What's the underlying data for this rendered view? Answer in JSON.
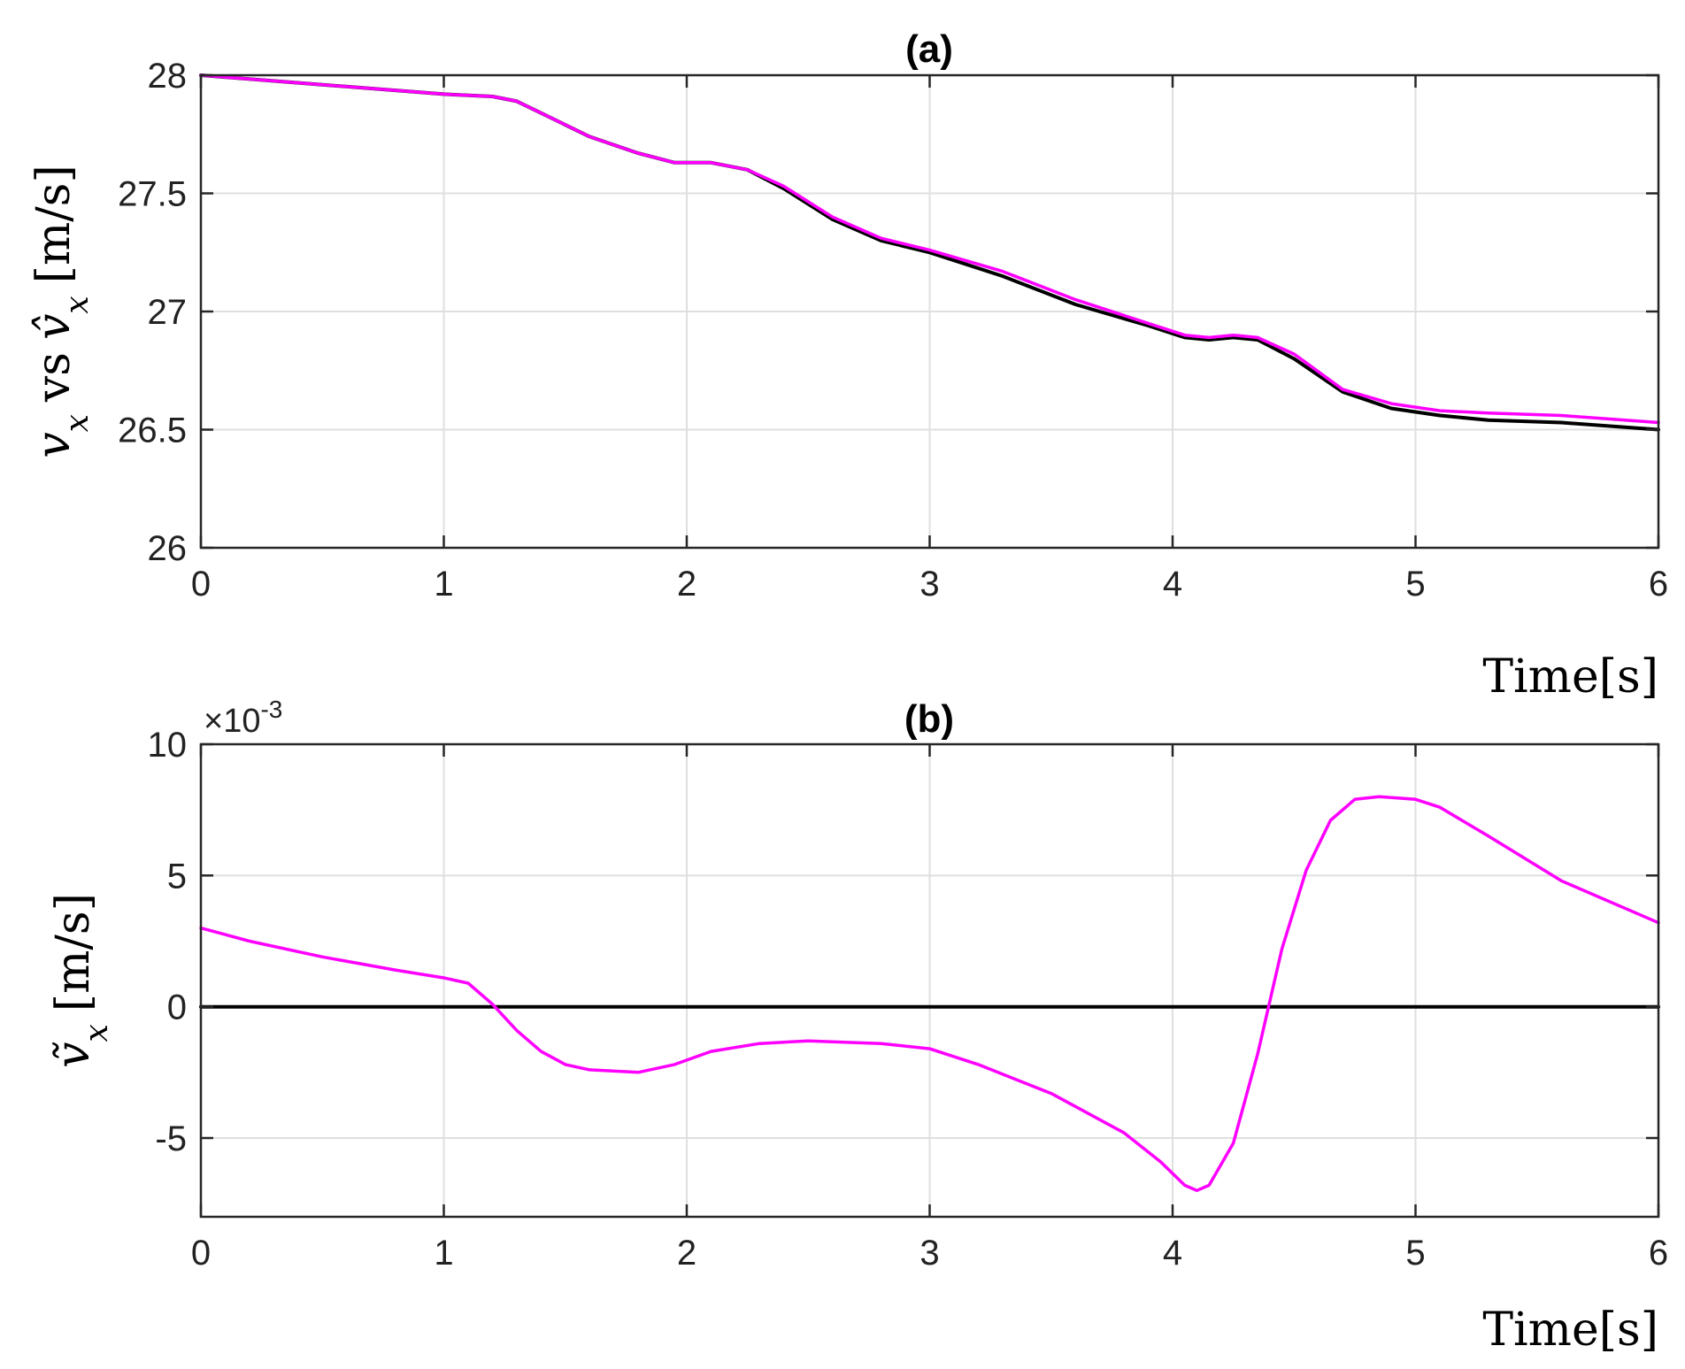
{
  "chart_data": [
    {
      "type": "line",
      "title": "(a)",
      "xlabel": "Time[s]",
      "ylabel_parts": [
        "v",
        "x",
        "vs",
        "v̂",
        "x",
        "[m/s]"
      ],
      "xlim": [
        0,
        6
      ],
      "ylim": [
        26,
        28
      ],
      "xticks": [
        0,
        1,
        2,
        3,
        4,
        5,
        6
      ],
      "yticks": [
        26,
        26.5,
        27,
        27.5,
        28
      ],
      "xtick_labels": [
        "0",
        "1",
        "2",
        "3",
        "4",
        "5",
        "6"
      ],
      "ytick_labels": [
        "26",
        "26.5",
        "27",
        "27.5",
        "28"
      ],
      "grid": true,
      "series": [
        {
          "color": "#000000",
          "x": [
            0,
            0.5,
            1.0,
            1.2,
            1.3,
            1.4,
            1.6,
            1.8,
            1.95,
            2.1,
            2.25,
            2.4,
            2.6,
            2.8,
            3.0,
            3.3,
            3.6,
            3.9,
            4.05,
            4.15,
            4.25,
            4.35,
            4.5,
            4.7,
            4.9,
            5.1,
            5.3,
            5.6,
            6.0
          ],
          "y": [
            28.0,
            27.96,
            27.92,
            27.91,
            27.89,
            27.84,
            27.74,
            27.67,
            27.63,
            27.63,
            27.6,
            27.52,
            27.39,
            27.3,
            27.25,
            27.15,
            27.03,
            26.94,
            26.89,
            26.88,
            26.89,
            26.88,
            26.8,
            26.66,
            26.59,
            26.56,
            26.54,
            26.53,
            26.5
          ]
        },
        {
          "color": "#ff00ff",
          "x": [
            0,
            0.5,
            1.0,
            1.2,
            1.3,
            1.4,
            1.6,
            1.8,
            1.95,
            2.1,
            2.25,
            2.4,
            2.6,
            2.8,
            3.0,
            3.3,
            3.6,
            3.9,
            4.05,
            4.15,
            4.25,
            4.35,
            4.5,
            4.7,
            4.9,
            5.1,
            5.3,
            5.6,
            6.0
          ],
          "y": [
            28.0,
            27.96,
            27.92,
            27.91,
            27.89,
            27.84,
            27.74,
            27.67,
            27.63,
            27.63,
            27.6,
            27.53,
            27.4,
            27.31,
            27.26,
            27.17,
            27.05,
            26.95,
            26.9,
            26.89,
            26.9,
            26.89,
            26.82,
            26.67,
            26.61,
            26.58,
            26.57,
            26.56,
            26.53
          ]
        }
      ]
    },
    {
      "type": "line",
      "title": "(b)",
      "xlabel": "Time[s]",
      "ylabel_parts": [
        "ṽ",
        "x",
        "[m/s]"
      ],
      "exponent_label": "×10",
      "exponent_power": "-3",
      "xlim": [
        0,
        6
      ],
      "ylim": [
        -0.008,
        0.01
      ],
      "xticks": [
        0,
        1,
        2,
        3,
        4,
        5,
        6
      ],
      "yticks": [
        -0.005,
        0,
        0.005,
        0.01
      ],
      "xtick_labels": [
        "0",
        "1",
        "2",
        "3",
        "4",
        "5",
        "6"
      ],
      "ytick_labels": [
        "-5",
        "0",
        "5",
        "10"
      ],
      "grid": true,
      "series": [
        {
          "color": "#000000",
          "x": [
            0,
            6
          ],
          "y": [
            0,
            0
          ]
        },
        {
          "color": "#ff00ff",
          "x": [
            0,
            0.2,
            0.5,
            0.8,
            1.0,
            1.1,
            1.2,
            1.3,
            1.4,
            1.5,
            1.6,
            1.8,
            1.95,
            2.1,
            2.3,
            2.5,
            2.8,
            3.0,
            3.2,
            3.5,
            3.8,
            3.95,
            4.05,
            4.1,
            4.15,
            4.25,
            4.35,
            4.45,
            4.55,
            4.65,
            4.75,
            4.85,
            5.0,
            5.1,
            5.3,
            5.6,
            6.0
          ],
          "y": [
            0.003,
            0.0025,
            0.0019,
            0.0014,
            0.0011,
            0.0009,
            0.0001,
            -0.0009,
            -0.0017,
            -0.0022,
            -0.0024,
            -0.0025,
            -0.0022,
            -0.0017,
            -0.0014,
            -0.0013,
            -0.0014,
            -0.0016,
            -0.0022,
            -0.0033,
            -0.0048,
            -0.0059,
            -0.0068,
            -0.007,
            -0.0068,
            -0.0052,
            -0.0018,
            0.0022,
            0.0052,
            0.0071,
            0.0079,
            0.008,
            0.0079,
            0.0076,
            0.0065,
            0.0048,
            0.0032
          ]
        }
      ]
    }
  ]
}
